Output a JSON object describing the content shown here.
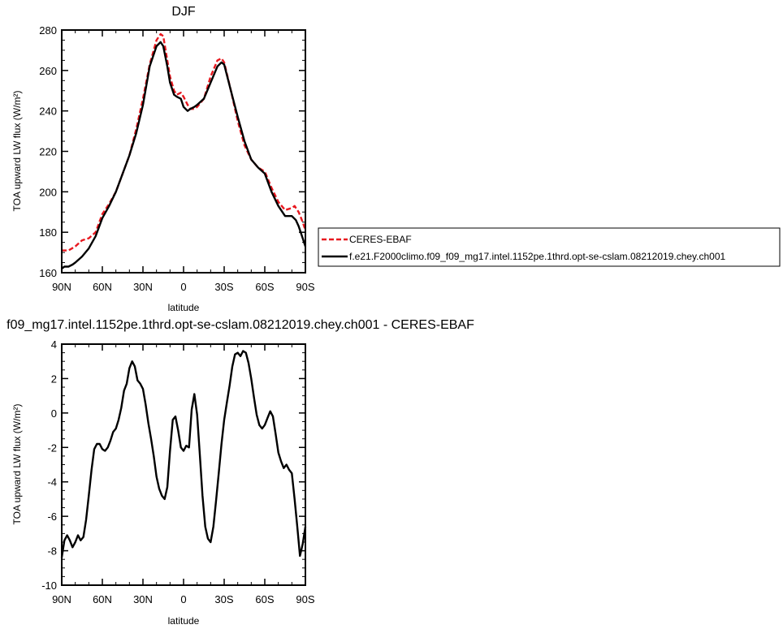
{
  "chart_data": [
    {
      "type": "line",
      "title": "DJF",
      "xlabel": "latitude",
      "ylabel": "TOA upward LW flux (W/m²)",
      "x_tick_labels": [
        "90N",
        "60N",
        "30N",
        "0",
        "30S",
        "60S",
        "90S"
      ],
      "x_ticks": [
        90,
        60,
        30,
        0,
        -30,
        -60,
        -90
      ],
      "y_ticks": [
        160,
        180,
        200,
        220,
        240,
        260,
        280
      ],
      "xlim": [
        90,
        -90
      ],
      "ylim": [
        160,
        280
      ],
      "grid": false,
      "legend_position": "right",
      "series": [
        {
          "name": "CERES-EBAF",
          "color": "#e8181f",
          "style": "dashed",
          "x": [
            90,
            85,
            80,
            75,
            70,
            65,
            60,
            55,
            50,
            45,
            40,
            35,
            30,
            25,
            20,
            17,
            15,
            12,
            10,
            7,
            5,
            2,
            0,
            -3,
            -5,
            -8,
            -10,
            -15,
            -20,
            -25,
            -28,
            -30,
            -35,
            -40,
            -45,
            -50,
            -55,
            -60,
            -65,
            -70,
            -75,
            -80,
            -82,
            -85,
            -88,
            -90
          ],
          "y": [
            171,
            171,
            173,
            176,
            177,
            180,
            189,
            194,
            200,
            209,
            218,
            231,
            246,
            263,
            275,
            278,
            277,
            265,
            257,
            250,
            248,
            249,
            247,
            243,
            241,
            241,
            242,
            246,
            257,
            265,
            266,
            264,
            250,
            235,
            223,
            216,
            212,
            210,
            202,
            195,
            191,
            192,
            193,
            190,
            185,
            181
          ]
        },
        {
          "name": "f.e21.F2000climo.f09_f09_mg17.intel.1152pe.1thrd.opt-se-cslam.08212019.chey.ch001",
          "color": "#000000",
          "style": "solid",
          "x": [
            90,
            88,
            85,
            82,
            80,
            75,
            70,
            65,
            60,
            55,
            50,
            45,
            40,
            35,
            30,
            25,
            20,
            17,
            15,
            12,
            10,
            7,
            5,
            2,
            0,
            -3,
            -5,
            -8,
            -10,
            -15,
            -20,
            -25,
            -28,
            -30,
            -35,
            -40,
            -45,
            -50,
            -55,
            -60,
            -65,
            -70,
            -75,
            -80,
            -83,
            -85,
            -88,
            -90
          ],
          "y": [
            162,
            163,
            163,
            164,
            165,
            168,
            172,
            178,
            187,
            193,
            200,
            209,
            218,
            229,
            243,
            262,
            272,
            274,
            272,
            262,
            254,
            248,
            247,
            246,
            242,
            240,
            241,
            242,
            243,
            246,
            254,
            262,
            264,
            263,
            250,
            237,
            225,
            216,
            212,
            209,
            200,
            193,
            188,
            188,
            186,
            183,
            177,
            173
          ]
        }
      ]
    },
    {
      "type": "line",
      "title": "f09_mg17.intel.1152pe.1thrd.opt-se-cslam.08212019.chey.ch001 - CERES-EBAF",
      "xlabel": "latitude",
      "ylabel": "TOA upward LW flux (W/m²)",
      "x_tick_labels": [
        "90N",
        "60N",
        "30N",
        "0",
        "30S",
        "60S",
        "90S"
      ],
      "x_ticks": [
        90,
        60,
        30,
        0,
        -30,
        -60,
        -90
      ],
      "y_ticks": [
        -10,
        -8,
        -6,
        -4,
        -2,
        0,
        2,
        4
      ],
      "xlim": [
        90,
        -90
      ],
      "ylim": [
        -10,
        4
      ],
      "grid": false,
      "series": [
        {
          "name": "",
          "color": "#000000",
          "style": "solid",
          "x": [
            90,
            88,
            86,
            84,
            82,
            80,
            78,
            76,
            74,
            72,
            70,
            68,
            66,
            64,
            62,
            60,
            58,
            56,
            54,
            52,
            50,
            48,
            46,
            44,
            42,
            40,
            38,
            36,
            34,
            32,
            30,
            28,
            26,
            24,
            22,
            20,
            18,
            16,
            14,
            12,
            10,
            8,
            6,
            4,
            2,
            0,
            -2,
            -4,
            -6,
            -8,
            -10,
            -12,
            -14,
            -16,
            -18,
            -20,
            -22,
            -24,
            -26,
            -28,
            -30,
            -32,
            -34,
            -36,
            -38,
            -40,
            -42,
            -44,
            -46,
            -48,
            -50,
            -52,
            -54,
            -56,
            -58,
            -60,
            -62,
            -64,
            -66,
            -68,
            -70,
            -72,
            -74,
            -76,
            -78,
            -80,
            -82,
            -84,
            -86,
            -88,
            -90
          ],
          "y": [
            -8.4,
            -7.4,
            -7.1,
            -7.4,
            -7.8,
            -7.5,
            -7.1,
            -7.4,
            -7.2,
            -6.2,
            -4.8,
            -3.3,
            -2.1,
            -1.8,
            -1.8,
            -2.1,
            -2.2,
            -2.0,
            -1.6,
            -1.1,
            -0.9,
            -0.4,
            0.3,
            1.3,
            1.7,
            2.6,
            3.0,
            2.7,
            1.9,
            1.7,
            1.4,
            0.5,
            -0.6,
            -1.5,
            -2.5,
            -3.7,
            -4.4,
            -4.8,
            -5.0,
            -4.3,
            -2.2,
            -0.4,
            -0.2,
            -1.0,
            -2.0,
            -2.2,
            -1.9,
            -2.0,
            0.2,
            1.1,
            -0.1,
            -2.4,
            -4.8,
            -6.6,
            -7.3,
            -7.5,
            -6.6,
            -5.1,
            -3.5,
            -1.8,
            -0.4,
            0.6,
            1.6,
            2.7,
            3.4,
            3.5,
            3.3,
            3.6,
            3.5,
            2.9,
            2.0,
            0.9,
            -0.1,
            -0.7,
            -0.9,
            -0.7,
            -0.3,
            0.1,
            -0.2,
            -1.2,
            -2.3,
            -2.8,
            -3.2,
            -3.0,
            -3.3,
            -3.5,
            -5.0,
            -6.6,
            -8.3,
            -7.6,
            -6.6
          ]
        }
      ]
    }
  ]
}
